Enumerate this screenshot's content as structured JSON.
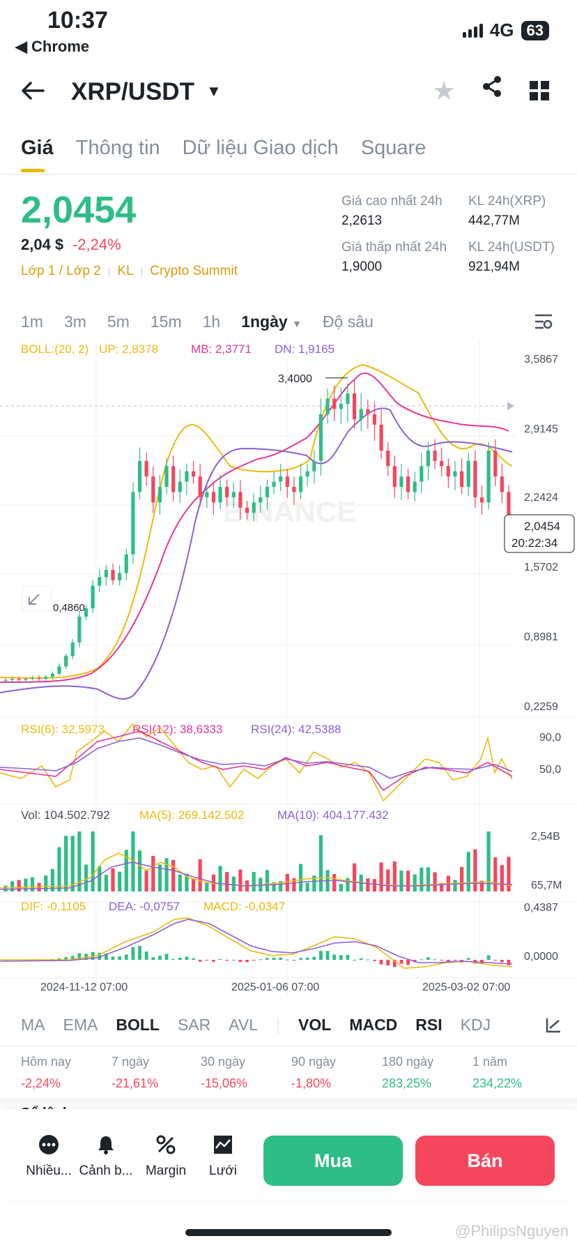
{
  "status": {
    "time": "10:37",
    "back_app": "◀ Chrome",
    "network": "4G",
    "battery": "63"
  },
  "header": {
    "pair": "XRP/USDT"
  },
  "tabs": [
    {
      "label": "Giá",
      "active": true
    },
    {
      "label": "Thông tin"
    },
    {
      "label": "Dữ liệu Giao dịch"
    },
    {
      "label": "Square"
    }
  ],
  "price": {
    "last": "2,0454",
    "usd": "2,04 $",
    "change": "-2,24%"
  },
  "tags": [
    "Lớp 1 / Lớp 2",
    "KL",
    "Crypto Summit"
  ],
  "stats": {
    "high_label": "Giá cao nhất 24h",
    "high": "2,2613",
    "low_label": "Giá thấp nhất 24h",
    "low": "1,9000",
    "vol_xrp_label": "KL 24h(XRP)",
    "vol_xrp": "442,77M",
    "vol_usdt_label": "KL 24h(USDT)",
    "vol_usdt": "921,94M"
  },
  "intervals": [
    "1m",
    "3m",
    "5m",
    "15m",
    "1h",
    "1ngày",
    "Độ sâu"
  ],
  "chart_data": {
    "type": "candlestick",
    "pair": "XRP/USDT",
    "interval": "1ngày",
    "boll": {
      "label": "BOLL:(20, 2)",
      "up": "UP: 2,8378",
      "mb": "MB: 2,3771",
      "dn": "DN: 1,9165"
    },
    "y_ticks": [
      "3,5867",
      "2,9145",
      "2,2424",
      "1,5702",
      "0,8981",
      "0,2259"
    ],
    "y_range": [
      0.2259,
      3.5867
    ],
    "high_marker": "3,4000",
    "low_marker": "0,4860",
    "last_price": "2,0454",
    "countdown": "20:22:34",
    "rsi": {
      "rsi6": "RSI(6): 32,5973",
      "rsi12": "RSI(12): 38,6333",
      "rsi24": "RSI(24): 42,5388",
      "ticks": [
        "90,0",
        "50,0"
      ]
    },
    "vol": {
      "vol": "Vol: 104.502.792",
      "ma5": "MA(5): 269.142.502",
      "ma10": "MA(10): 404.177.432",
      "ticks": [
        "2,54B",
        "65,7M"
      ]
    },
    "macd": {
      "dif": "DIF: -0,1105",
      "dea": "DEA: -0,0757",
      "macd": "MACD: -0,0347",
      "ticks": [
        "0,4387",
        "0,0000"
      ]
    },
    "x_ticks": [
      "2024-11-12 07:00",
      "2025-01-06 07:00",
      "2025-03-02 07:00"
    ],
    "watermark": "BINANCE",
    "closes": [
      0.49,
      0.5,
      0.49,
      0.5,
      0.51,
      0.5,
      0.52,
      0.55,
      0.62,
      0.72,
      0.85,
      1.1,
      1.18,
      1.4,
      1.48,
      1.55,
      1.45,
      1.52,
      1.7,
      2.3,
      2.6,
      2.45,
      2.2,
      2.35,
      2.55,
      2.3,
      2.4,
      2.5,
      2.45,
      2.25,
      2.3,
      2.2,
      2.35,
      2.25,
      2.3,
      2.15,
      2.1,
      2.2,
      2.25,
      2.35,
      2.4,
      2.45,
      2.35,
      2.3,
      2.45,
      2.5,
      2.6,
      3.05,
      3.2,
      3.1,
      3.15,
      3.25,
      3.0,
      3.1,
      3.05,
      2.95,
      2.7,
      2.55,
      2.35,
      2.45,
      2.3,
      2.4,
      2.55,
      2.7,
      2.6,
      2.55,
      2.45,
      2.5,
      2.35,
      2.6,
      2.25,
      2.2,
      2.7,
      2.45,
      2.3,
      2.05
    ]
  },
  "indicators": [
    "MA",
    "EMA",
    "BOLL",
    "SAR",
    "AVL",
    "VOL",
    "MACD",
    "RSI",
    "KDJ"
  ],
  "performance": [
    {
      "label": "Hôm nay",
      "value": "-2,24%",
      "positive": false
    },
    {
      "label": "7 ngày",
      "value": "-21,61%",
      "positive": false
    },
    {
      "label": "30 ngày",
      "value": "-15,06%",
      "positive": false
    },
    {
      "label": "90 ngày",
      "value": "-1,80%",
      "positive": false
    },
    {
      "label": "180 ngày",
      "value": "283,25%",
      "positive": true
    },
    {
      "label": "1 năm",
      "value": "234,22%",
      "positive": true
    }
  ],
  "peek_tab": "Sổ lệnh",
  "bottom": {
    "more": "Nhiều...",
    "alert": "Cảnh b...",
    "margin": "Margin",
    "grid": "Lưới",
    "buy": "Mua",
    "sell": "Bán"
  },
  "colors": {
    "up": "#2ebd85",
    "down": "#f6465d",
    "accent": "#f0b90b",
    "boll_up": "#f0b90b",
    "boll_mb": "#e8339a",
    "boll_dn": "#8c5fd6"
  },
  "credit": "@PhilipsNguyen"
}
